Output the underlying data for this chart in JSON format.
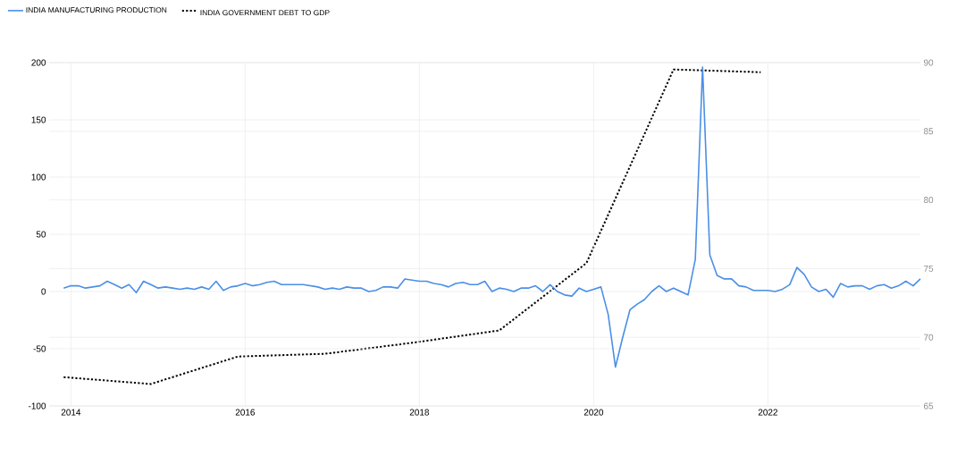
{
  "chart_data": {
    "type": "line",
    "xlim": [
      "2013-10",
      "2023-10"
    ],
    "xticks": [
      "2014",
      "2016",
      "2018",
      "2020",
      "2022"
    ],
    "ylim": [
      -100,
      200
    ],
    "yticks": [
      -100,
      -50,
      0,
      50,
      100,
      150,
      200
    ],
    "y2lim": [
      65,
      90
    ],
    "y2ticks": [
      65,
      70,
      75,
      80,
      85,
      90
    ],
    "grid": true,
    "legend": "top left",
    "series": [
      {
        "name": "INDIA MANUFACTURING PRODUCTION",
        "color": "#4a8fe6",
        "line_style": "solid",
        "x": [
          "2013-12",
          "2014-01",
          "2014-02",
          "2014-03",
          "2014-04",
          "2014-05",
          "2014-06",
          "2014-07",
          "2014-08",
          "2014-09",
          "2014-10",
          "2014-11",
          "2014-12",
          "2015-01",
          "2015-02",
          "2015-03",
          "2015-04",
          "2015-05",
          "2015-06",
          "2015-07",
          "2015-08",
          "2015-09",
          "2015-10",
          "2015-11",
          "2015-12",
          "2016-01",
          "2016-02",
          "2016-03",
          "2016-04",
          "2016-05",
          "2016-06",
          "2016-07",
          "2016-08",
          "2016-09",
          "2016-10",
          "2016-11",
          "2016-12",
          "2017-01",
          "2017-02",
          "2017-03",
          "2017-04",
          "2017-05",
          "2017-06",
          "2017-07",
          "2017-08",
          "2017-09",
          "2017-10",
          "2017-11",
          "2017-12",
          "2018-01",
          "2018-02",
          "2018-03",
          "2018-04",
          "2018-05",
          "2018-06",
          "2018-07",
          "2018-08",
          "2018-09",
          "2018-10",
          "2018-11",
          "2018-12",
          "2019-01",
          "2019-02",
          "2019-03",
          "2019-04",
          "2019-05",
          "2019-06",
          "2019-07",
          "2019-08",
          "2019-09",
          "2019-10",
          "2019-11",
          "2019-12",
          "2020-01",
          "2020-02",
          "2020-03",
          "2020-04",
          "2020-05",
          "2020-06",
          "2020-07",
          "2020-08",
          "2020-09",
          "2020-10",
          "2020-11",
          "2020-12",
          "2021-01",
          "2021-02",
          "2021-03",
          "2021-04",
          "2021-05",
          "2021-06",
          "2021-07",
          "2021-08",
          "2021-09",
          "2021-10",
          "2021-11",
          "2021-12",
          "2022-01",
          "2022-02",
          "2022-03",
          "2022-04",
          "2022-05",
          "2022-06",
          "2022-07",
          "2022-08",
          "2022-09",
          "2022-10",
          "2022-11",
          "2022-12",
          "2023-01",
          "2023-02",
          "2023-03",
          "2023-04",
          "2023-05",
          "2023-06",
          "2023-07",
          "2023-08",
          "2023-09",
          "2023-10"
        ],
        "values": [
          3,
          5,
          5,
          3,
          4,
          5,
          9,
          6,
          3,
          6,
          -1,
          9,
          6,
          3,
          4,
          3,
          2,
          3,
          2,
          4,
          2,
          9,
          1,
          4,
          5,
          7,
          5,
          6,
          8,
          9,
          6,
          6,
          6,
          6,
          5,
          4,
          2,
          3,
          2,
          4,
          3,
          3,
          0,
          1,
          4,
          4,
          3,
          11,
          10,
          9,
          9,
          7,
          6,
          4,
          7,
          8,
          6,
          6,
          9,
          0,
          3,
          2,
          0,
          3,
          3,
          5,
          0,
          6,
          0,
          -3,
          -4,
          3,
          0,
          2,
          4,
          -20,
          -66,
          -40,
          -16,
          -11,
          -7,
          0,
          5,
          0,
          3,
          0,
          -3,
          28,
          196,
          32,
          14,
          11,
          11,
          5,
          4,
          1,
          1,
          1,
          0,
          2,
          6,
          21,
          15,
          4,
          0,
          2,
          -5,
          7,
          4,
          5,
          5,
          2,
          5,
          6,
          3,
          5,
          9,
          5,
          11
        ]
      },
      {
        "name": "INDIA GOVERNMENT DEBT TO GDP",
        "color": "#000000",
        "line_style": "dotted",
        "axis": "y2",
        "x": [
          "2013-12",
          "2014-12",
          "2015-12",
          "2016-12",
          "2017-12",
          "2018-12",
          "2019-12",
          "2020-12",
          "2021-12"
        ],
        "values": [
          67.1,
          66.6,
          68.6,
          68.8,
          69.6,
          70.5,
          75.4,
          89.5,
          89.3
        ]
      }
    ]
  }
}
